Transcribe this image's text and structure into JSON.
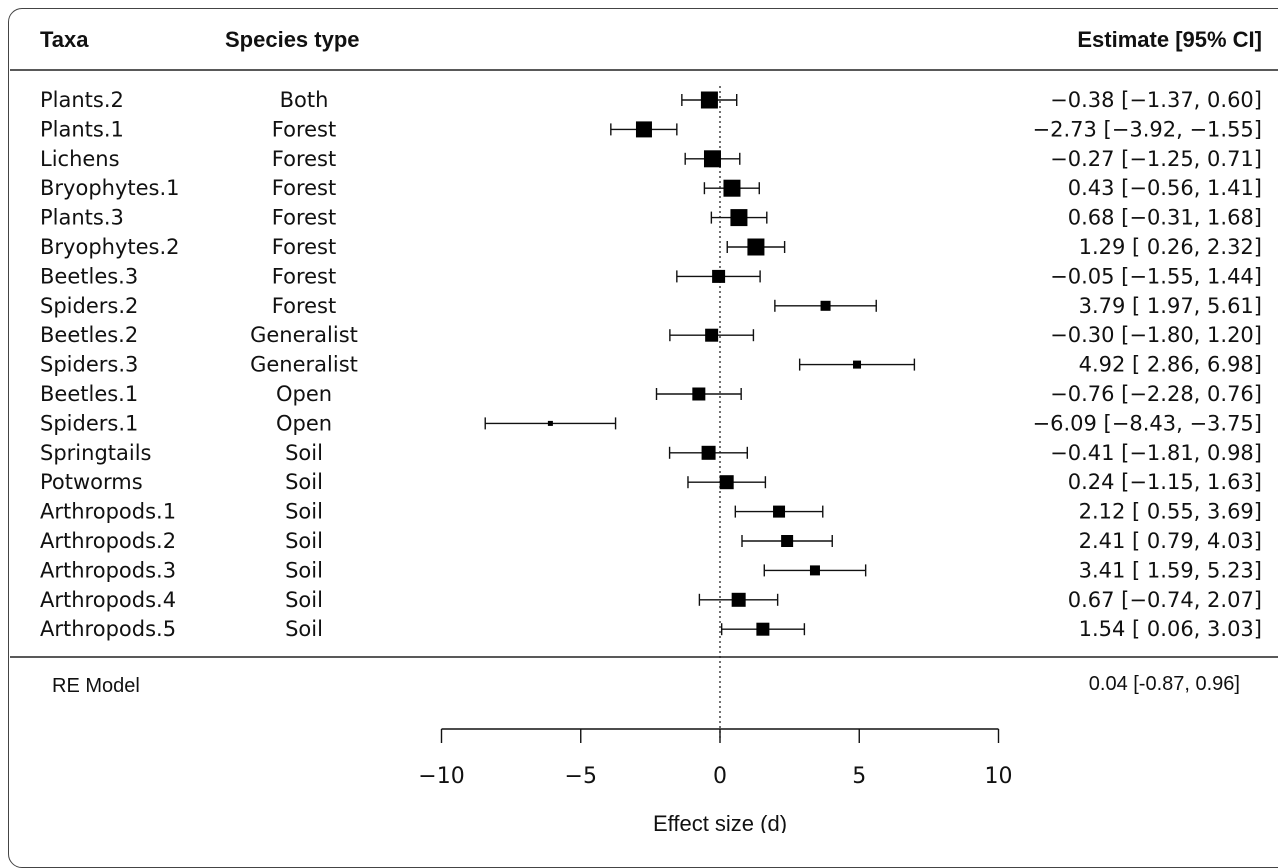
{
  "chart_data": {
    "type": "forest",
    "headers": {
      "taxa": "Taxa",
      "species_type": "Species type",
      "estimate": "Estimate [95% CI]"
    },
    "studies": [
      {
        "taxa": "Plants.2",
        "species_type": "Both",
        "estimate": -0.38,
        "ci_low": -1.37,
        "ci_high": 0.6,
        "text": "−0.38 [−1.37,  0.60]",
        "weight": 17
      },
      {
        "taxa": "Plants.1",
        "species_type": "Forest",
        "estimate": -2.73,
        "ci_low": -3.92,
        "ci_high": -1.55,
        "text": "−2.73 [−3.92, −1.55]",
        "weight": 16
      },
      {
        "taxa": "Lichens",
        "species_type": "Forest",
        "estimate": -0.27,
        "ci_low": -1.25,
        "ci_high": 0.71,
        "text": "−0.27 [−1.25,  0.71]",
        "weight": 17
      },
      {
        "taxa": "Bryophytes.1",
        "species_type": "Forest",
        "estimate": 0.43,
        "ci_low": -0.56,
        "ci_high": 1.41,
        "text": "0.43 [−0.56,  1.41]",
        "weight": 17
      },
      {
        "taxa": "Plants.3",
        "species_type": "Forest",
        "estimate": 0.68,
        "ci_low": -0.31,
        "ci_high": 1.68,
        "text": "0.68 [−0.31,  1.68]",
        "weight": 17
      },
      {
        "taxa": "Bryophytes.2",
        "species_type": "Forest",
        "estimate": 1.29,
        "ci_low": 0.26,
        "ci_high": 2.32,
        "text": "1.29 [ 0.26,  2.32]",
        "weight": 17
      },
      {
        "taxa": "Beetles.3",
        "species_type": "Forest",
        "estimate": -0.05,
        "ci_low": -1.55,
        "ci_high": 1.44,
        "text": "−0.05 [−1.55,  1.44]",
        "weight": 13
      },
      {
        "taxa": "Spiders.2",
        "species_type": "Forest",
        "estimate": 3.79,
        "ci_low": 1.97,
        "ci_high": 5.61,
        "text": "3.79 [ 1.97,  5.61]",
        "weight": 10
      },
      {
        "taxa": "Beetles.2",
        "species_type": "Generalist",
        "estimate": -0.3,
        "ci_low": -1.8,
        "ci_high": 1.2,
        "text": "−0.30 [−1.80,  1.20]",
        "weight": 13
      },
      {
        "taxa": "Spiders.3",
        "species_type": "Generalist",
        "estimate": 4.92,
        "ci_low": 2.86,
        "ci_high": 6.98,
        "text": "4.92 [ 2.86,  6.98]",
        "weight": 8
      },
      {
        "taxa": "Beetles.1",
        "species_type": "Open",
        "estimate": -0.76,
        "ci_low": -2.28,
        "ci_high": 0.76,
        "text": "−0.76 [−2.28,  0.76]",
        "weight": 13
      },
      {
        "taxa": "Spiders.1",
        "species_type": "Open",
        "estimate": -6.09,
        "ci_low": -8.43,
        "ci_high": -3.75,
        "text": "−6.09 [−8.43, −3.75]",
        "weight": 5
      },
      {
        "taxa": "Springtails",
        "species_type": "Soil",
        "estimate": -0.41,
        "ci_low": -1.81,
        "ci_high": 0.98,
        "text": "−0.41 [−1.81,  0.98]",
        "weight": 14
      },
      {
        "taxa": "Potworms",
        "species_type": "Soil",
        "estimate": 0.24,
        "ci_low": -1.15,
        "ci_high": 1.63,
        "text": "0.24 [−1.15,  1.63]",
        "weight": 14
      },
      {
        "taxa": "Arthropods.1",
        "species_type": "Soil",
        "estimate": 2.12,
        "ci_low": 0.55,
        "ci_high": 3.69,
        "text": "2.12 [ 0.55,  3.69]",
        "weight": 12
      },
      {
        "taxa": "Arthropods.2",
        "species_type": "Soil",
        "estimate": 2.41,
        "ci_low": 0.79,
        "ci_high": 4.03,
        "text": "2.41 [ 0.79,  4.03]",
        "weight": 12
      },
      {
        "taxa": "Arthropods.3",
        "species_type": "Soil",
        "estimate": 3.41,
        "ci_low": 1.59,
        "ci_high": 5.23,
        "text": "3.41 [ 1.59,  5.23]",
        "weight": 10
      },
      {
        "taxa": "Arthropods.4",
        "species_type": "Soil",
        "estimate": 0.67,
        "ci_low": -0.74,
        "ci_high": 2.07,
        "text": "0.67 [−0.74,  2.07]",
        "weight": 14
      },
      {
        "taxa": "Arthropods.5",
        "species_type": "Soil",
        "estimate": 1.54,
        "ci_low": 0.06,
        "ci_high": 3.03,
        "text": "1.54 [ 0.06,  3.03]",
        "weight": 13
      }
    ],
    "summary": {
      "label": "RE Model",
      "estimate": 0.04,
      "ci_low": -0.87,
      "ci_high": 0.96,
      "text": "0.04 [-0.87, 0.96]"
    },
    "x_axis": {
      "label": "Effect size (d)",
      "ticks": [
        -10,
        -5,
        0,
        5,
        10
      ],
      "tick_labels": [
        "−10",
        "−5",
        "0",
        "5",
        "10"
      ],
      "range": [
        -10,
        10
      ]
    },
    "reference_line": 0
  }
}
